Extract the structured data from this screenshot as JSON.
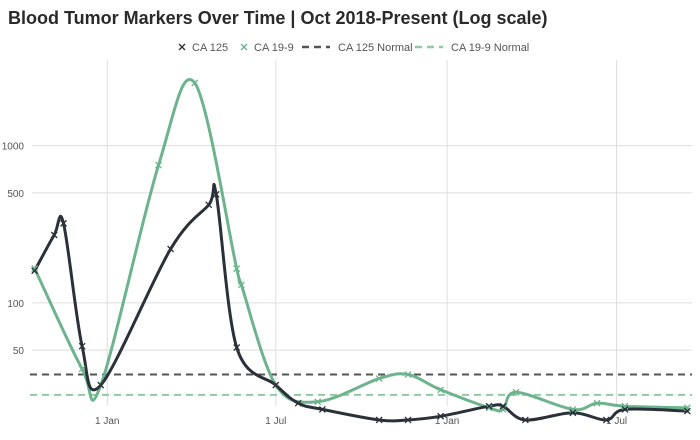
{
  "chart_data": {
    "type": "line",
    "title": "Blood Tumor Markers Over Time | Oct 2018-Present (Log scale)",
    "xlabel": "",
    "ylabel": "",
    "x_ticks": [
      "1 Jan",
      "1 Jul",
      "1 Jan",
      "1 Jul"
    ],
    "x_tick_dates": [
      "2019-01-01",
      "2019-07-01",
      "2020-01-01",
      "2020-07-01"
    ],
    "x_range": [
      "2018-10-10",
      "2020-09-20"
    ],
    "y_scale": "log",
    "y_ticks": [
      50,
      100,
      500,
      1000
    ],
    "y_range": [
      16,
      3500
    ],
    "grid": true,
    "legend_position": "top",
    "colors": {
      "CA 125": "#2b313a",
      "CA 19-9": "#6db38d",
      "CA 125 Normal": "#555555",
      "CA 19-9 Normal": "#8fcaa4"
    },
    "series": [
      {
        "name": "CA 125",
        "marker": "x",
        "x": [
          "2018-10-15",
          "2018-11-05",
          "2018-11-15",
          "2018-12-05",
          "2018-12-25",
          "2019-03-10",
          "2019-04-20",
          "2019-04-28",
          "2019-05-20",
          "2019-07-01",
          "2019-07-25",
          "2019-08-20",
          "2019-10-20",
          "2019-11-20",
          "2019-12-25",
          "2020-02-15",
          "2020-03-01",
          "2020-03-25",
          "2020-05-15",
          "2020-06-20",
          "2020-07-10",
          "2020-09-15"
        ],
        "y": [
          160,
          270,
          320,
          53,
          30,
          220,
          420,
          490,
          52,
          30,
          23,
          21,
          18,
          18,
          19,
          22,
          22,
          18,
          20,
          18,
          21,
          20.5
        ]
      },
      {
        "name": "CA 19-9",
        "marker": "x",
        "x": [
          "2018-10-15",
          "2018-12-05",
          "2018-12-25",
          "2019-02-25",
          "2019-04-05",
          "2019-05-20",
          "2019-05-25",
          "2019-07-01",
          "2019-08-15",
          "2019-10-20",
          "2019-11-20",
          "2019-12-25",
          "2020-02-15",
          "2020-03-01",
          "2020-03-15",
          "2020-05-15",
          "2020-06-10",
          "2020-07-10",
          "2020-09-15"
        ],
        "y": [
          165,
          38,
          30,
          750,
          2500,
          165,
          130,
          30,
          23.5,
          33,
          35,
          28,
          21.5,
          21,
          27,
          21,
          23,
          22,
          21.5
        ]
      },
      {
        "name": "CA 125 Normal",
        "style": "dashed",
        "x": [
          "2018-10-10",
          "2020-09-20"
        ],
        "y": [
          35,
          35
        ]
      },
      {
        "name": "CA 19-9 Normal",
        "style": "dashed",
        "x": [
          "2018-10-10",
          "2020-09-20"
        ],
        "y": [
          26,
          26
        ]
      }
    ]
  }
}
